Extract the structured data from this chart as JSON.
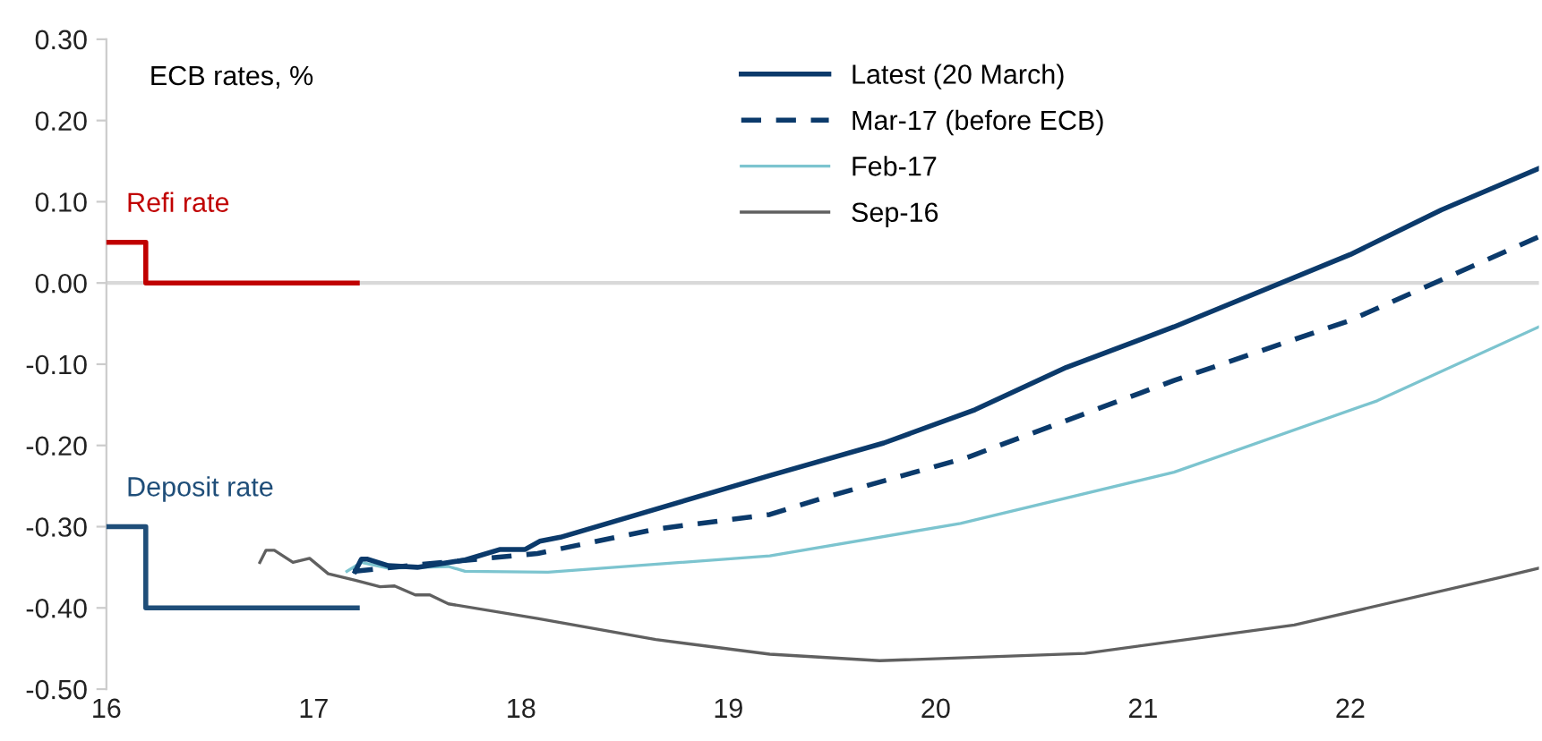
{
  "chart_data": {
    "type": "line",
    "xlim": [
      16,
      22.91
    ],
    "xticks": [
      16,
      17,
      18,
      19,
      20,
      21,
      22
    ],
    "ylim": [
      -0.5,
      0.3
    ],
    "yticks": [
      {
        "value": -0.5,
        "label": "-0.50"
      },
      {
        "value": -0.4,
        "label": "-0.40"
      },
      {
        "value": -0.3,
        "label": "-0.30"
      },
      {
        "value": -0.2,
        "label": "-0.20"
      },
      {
        "value": -0.1,
        "label": "-0.10"
      },
      {
        "value": 0,
        "label": "0.00"
      },
      {
        "value": 0.1,
        "label": "0.10"
      },
      {
        "value": 0.2,
        "label": "0.20"
      },
      {
        "value": 0.3,
        "label": "0.30"
      }
    ],
    "grid": false,
    "legend": "top",
    "ref_lines": [
      {
        "axis": "y",
        "value": 0,
        "color": "#d9d9d9"
      }
    ],
    "annotations": [
      "ECB rates, %",
      "Refi rate",
      "Deposit rate"
    ],
    "series": [
      {
        "name": "Latest (20 March)",
        "color": "#0b3a6b",
        "line_style": "solid",
        "x": [
          17.2,
          17.23,
          17.26,
          17.36,
          17.5,
          17.73,
          17.9,
          18.02,
          18.09,
          18.19,
          19.2,
          19.75,
          20.19,
          20.63,
          21.15,
          22.0,
          22.44,
          22.91
        ],
        "values": [
          -0.355,
          -0.34,
          -0.34,
          -0.348,
          -0.35,
          -0.341,
          -0.328,
          -0.328,
          -0.318,
          -0.313,
          -0.237,
          -0.197,
          -0.156,
          -0.104,
          -0.054,
          0.035,
          0.09,
          0.141
        ]
      },
      {
        "name": "Mar-17 (before ECB)",
        "color": "#0b3a6b",
        "line_style": "dashed",
        "x": [
          17.19,
          17.5,
          18.08,
          18.65,
          19.2,
          19.48,
          20.15,
          21.15,
          22.0,
          22.91
        ],
        "values": [
          -0.355,
          -0.347,
          -0.333,
          -0.303,
          -0.285,
          -0.263,
          -0.215,
          -0.12,
          -0.046,
          0.057
        ]
      },
      {
        "name": "Feb-17",
        "color": "#7cc4cf",
        "line_style": "solid",
        "x": [
          17.16,
          17.23,
          17.36,
          17.65,
          17.73,
          18.13,
          19.2,
          20.12,
          21.15,
          22.13,
          22.91
        ],
        "values": [
          -0.355,
          -0.344,
          -0.351,
          -0.349,
          -0.355,
          -0.356,
          -0.336,
          -0.296,
          -0.233,
          -0.145,
          -0.054
        ]
      },
      {
        "name": "Sep-16",
        "color": "#606060",
        "line_style": "solid",
        "x": [
          16.74,
          16.77,
          16.81,
          16.9,
          16.98,
          17.07,
          17.2,
          17.32,
          17.39,
          17.49,
          17.56,
          17.65,
          18.08,
          18.65,
          19.2,
          19.73,
          20.72,
          21.73,
          22.73,
          22.91
        ],
        "values": [
          -0.344,
          -0.329,
          -0.329,
          -0.344,
          -0.339,
          -0.358,
          -0.366,
          -0.374,
          -0.373,
          -0.384,
          -0.384,
          -0.395,
          -0.413,
          -0.439,
          -0.457,
          -0.465,
          -0.456,
          -0.421,
          -0.362,
          -0.351
        ]
      },
      {
        "type": "step",
        "color": "#c00000",
        "line_style": "solid",
        "x": [
          16,
          16.19,
          17.21
        ],
        "values": [
          0.05,
          0,
          0
        ]
      },
      {
        "type": "step",
        "color": "#1f4e79",
        "line_style": "solid",
        "x": [
          16,
          16.19,
          17.21
        ],
        "values": [
          -0.3,
          -0.4,
          -0.4
        ]
      }
    ]
  }
}
